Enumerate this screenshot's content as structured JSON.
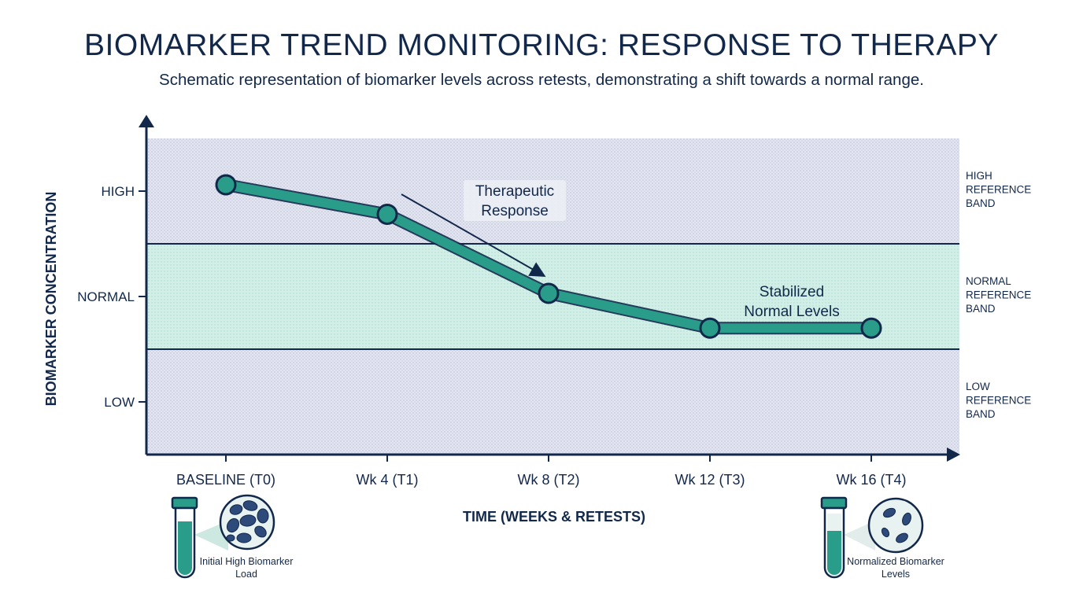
{
  "header": {
    "title": "BIOMARKER TREND MONITORING: RESPONSE TO THERAPY",
    "subtitle": "Schematic representation of biomarker levels across retests, demonstrating a shift towards a normal range."
  },
  "colors": {
    "primary": "#12284a",
    "line": "#2a9d8a",
    "normal_band": "#cfeee6",
    "outer_band": "#dfe2ef"
  },
  "chart_data": {
    "type": "line",
    "title": "BIOMARKER TREND MONITORING: RESPONSE TO THERAPY",
    "xlabel": "TIME (WEEKS & RETESTS)",
    "ylabel": "BIOMARKER CONCENTRATION",
    "categories": [
      "BASELINE (T0)",
      "Wk 4 (T1)",
      "Wk 8 (T2)",
      "Wk 12 (T3)",
      "Wk 16 (T4)"
    ],
    "y_ticks": [
      {
        "label": "HIGH",
        "value": 2
      },
      {
        "label": "NORMAL",
        "value": 1
      },
      {
        "label": "LOW",
        "value": 0
      }
    ],
    "ylim": [
      -0.5,
      2.5
    ],
    "series": [
      {
        "values": [
          2.06,
          1.78,
          1.03,
          0.7,
          0.7
        ]
      }
    ],
    "bands": [
      {
        "label": "HIGH REFERENCE BAND",
        "from": 1.5,
        "to": 2.5,
        "kind": "outer"
      },
      {
        "label": "NORMAL REFERENCE BAND",
        "from": 0.5,
        "to": 1.5,
        "kind": "normal"
      },
      {
        "label": "LOW REFERENCE BAND",
        "from": -0.5,
        "to": 0.5,
        "kind": "outer"
      }
    ],
    "annotations": [
      {
        "text": "Therapeutic Response"
      },
      {
        "text": "Stabilized Normal Levels"
      }
    ],
    "grid": false,
    "legend": "none"
  },
  "illustrations": {
    "left_caption": "Initial High Biomarker Load",
    "right_caption": "Normalized Biomarker Levels"
  }
}
